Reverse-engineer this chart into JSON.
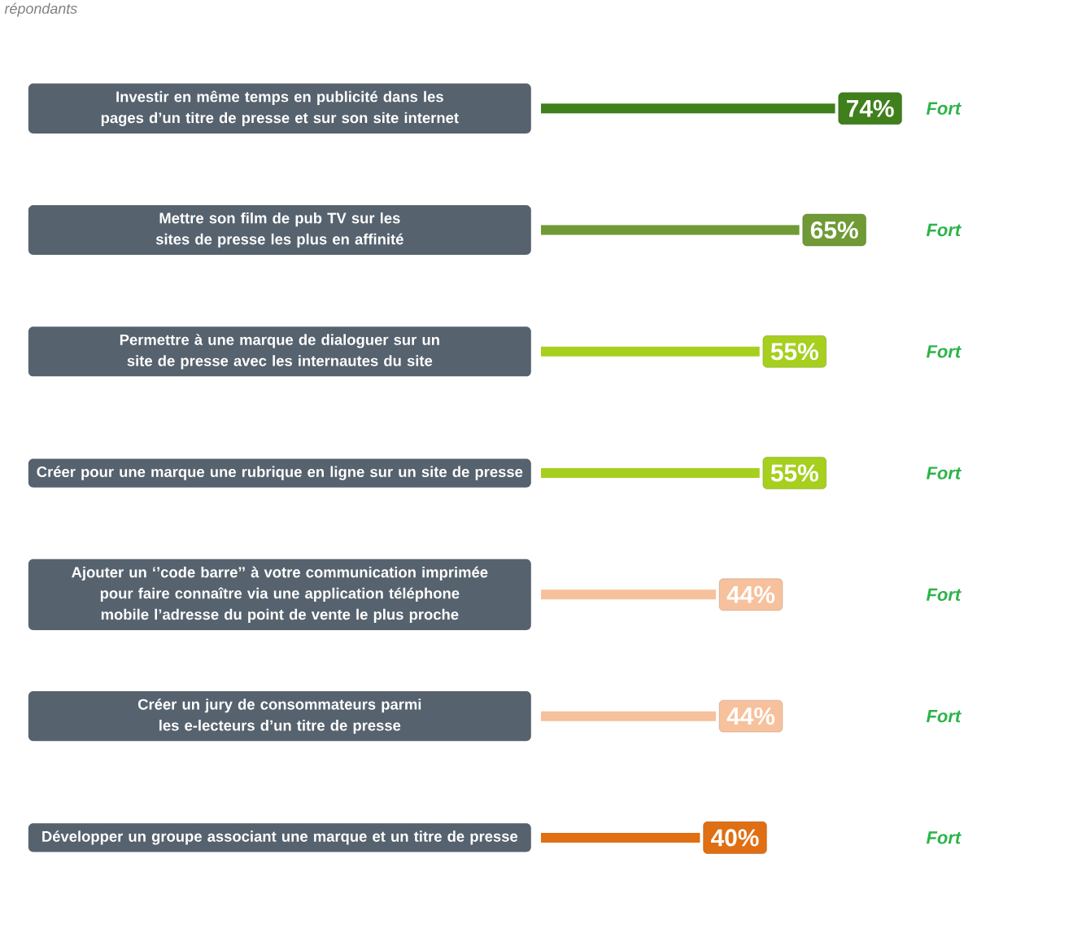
{
  "chart_data": {
    "type": "bar",
    "orientation": "horizontal",
    "subtitle": "répondants",
    "categories": [
      "Investir en même temps en publicité dans  les pages d’un titre de presse et sur son site internet",
      "Mettre son film de pub TV sur les sites de presse les plus en affinité",
      "Permettre à une marque de dialoguer sur un site de presse avec  les internautes du site",
      "Créer pour une marque une rubrique en ligne sur un site de presse",
      "Ajouter  un ‘’code barre’’ à votre communication imprimée pour faire connaître via une application téléphone mobile  l’adresse du point de vente le plus proche",
      "Créer un jury de consommateurs  parmi les e-lecteurs d’un titre de presse",
      "Développer un groupe associant une marque et un titre de presse"
    ],
    "values": [
      74,
      65,
      55,
      55,
      44,
      44,
      40
    ],
    "colors": [
      "#3f7f1c",
      "#6f9a35",
      "#a6cf1e",
      "#a6cf1e",
      "#f6c19c",
      "#f6c19c",
      "#df6f12"
    ],
    "value_labels": [
      "74%",
      "65%",
      "55%",
      "55%",
      "44%",
      "44%",
      "40%"
    ],
    "annotations": [
      "Fort",
      "Fort",
      "Fort",
      "Fort",
      "Fort",
      "Fort",
      "Fort"
    ]
  }
}
